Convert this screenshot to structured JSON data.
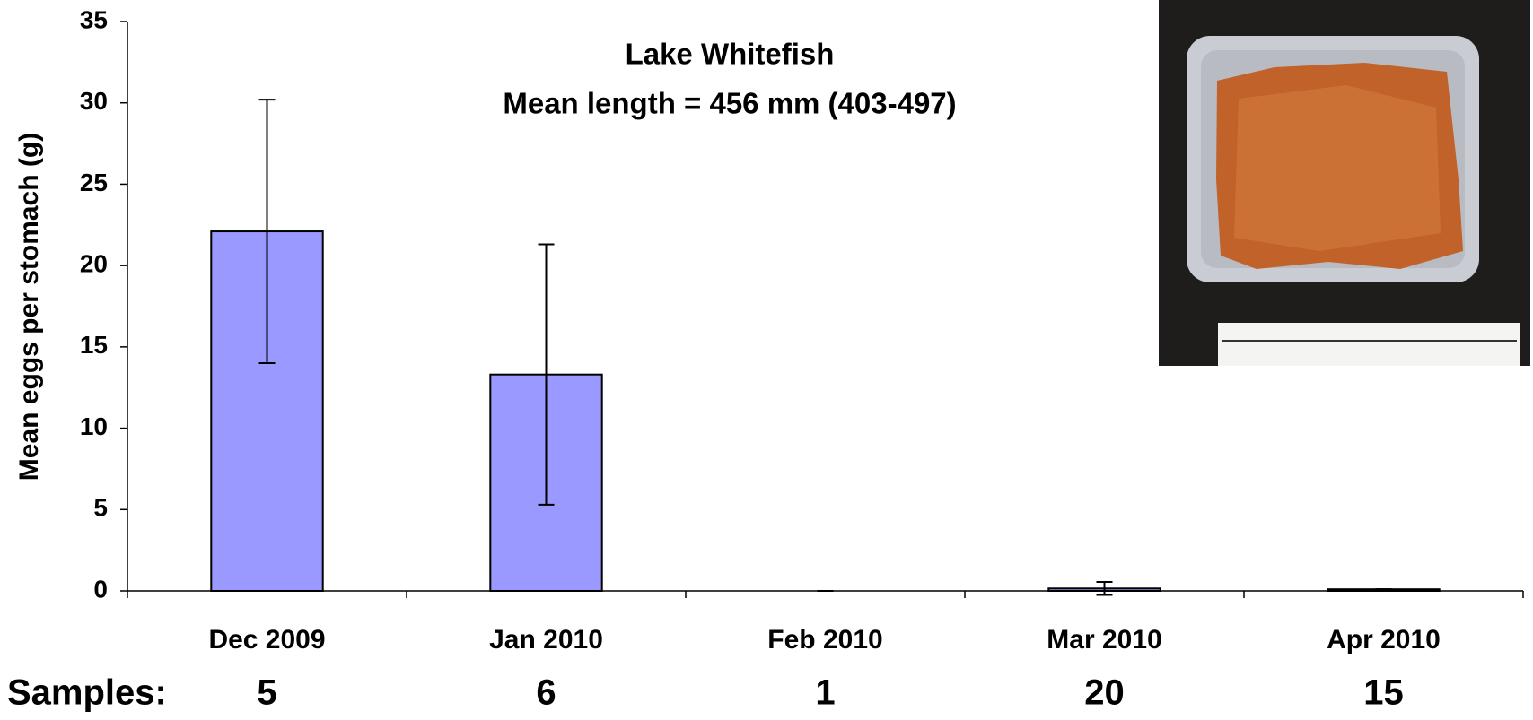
{
  "chart_data": {
    "type": "bar",
    "title": "Lake Whitefish",
    "subtitle": "Mean length = 456 mm (403-497)",
    "y_label": "Mean eggs per stomach (g)",
    "categories": [
      "Dec 2009",
      "Jan 2010",
      "Feb 2010",
      "Mar 2010",
      "Apr 2010"
    ],
    "values": [
      22.1,
      13.3,
      0,
      0.15,
      0.1
    ],
    "errors": [
      8.1,
      8,
      0,
      0.4,
      0
    ],
    "color": "#9999ff",
    "ylim": [
      0,
      35
    ],
    "yticks": [
      0,
      5,
      10,
      15,
      20,
      25,
      30,
      35
    ],
    "samples": {
      "label": "Samples:",
      "values": [
        5,
        6,
        1,
        20,
        15
      ]
    }
  }
}
